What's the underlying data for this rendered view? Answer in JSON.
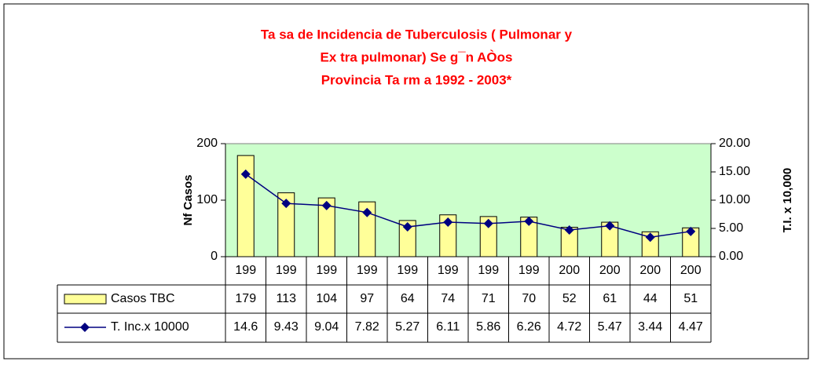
{
  "chart_data": {
    "type": "bar_line",
    "title": [
      "Ta sa  de  Incidencia  de  Tuberculosis ( Pulmonar  y",
      "Ex tra pulmonar)  Se g¯n  AÒos",
      "Provincia  Ta rm a     1992 - 2003*"
    ],
    "y_label": "Nf  Casos",
    "y2_label": "T.I. x 10,000",
    "categories": [
      "199",
      "199",
      "199",
      "199",
      "199",
      "199",
      "199",
      "199",
      "200",
      "200",
      "200",
      "200"
    ],
    "series": [
      {
        "name": "Casos TBC",
        "color": "#ffff99",
        "values": [
          179,
          113,
          104,
          97,
          64,
          74,
          71,
          70,
          52,
          61,
          44,
          51
        ]
      },
      {
        "name": "T. Inc.x 10000",
        "color": "#000080",
        "axis": "y2",
        "values": [
          14.6,
          9.43,
          9.04,
          7.82,
          5.27,
          6.11,
          5.86,
          6.26,
          4.72,
          5.47,
          3.44,
          4.47
        ]
      }
    ],
    "ylim": [
      0,
      200
    ],
    "yticks": [
      0,
      100,
      200
    ],
    "y2lim": [
      0,
      20
    ],
    "y2ticks": [
      {
        "value": 0,
        "label": "0.00"
      },
      {
        "value": 5,
        "label": "5.00"
      },
      {
        "value": 10,
        "label": "10.00"
      },
      {
        "value": 15,
        "label": "15.00"
      },
      {
        "value": 20,
        "label": "20.00"
      }
    ],
    "plot_background": "#ccffcc"
  }
}
